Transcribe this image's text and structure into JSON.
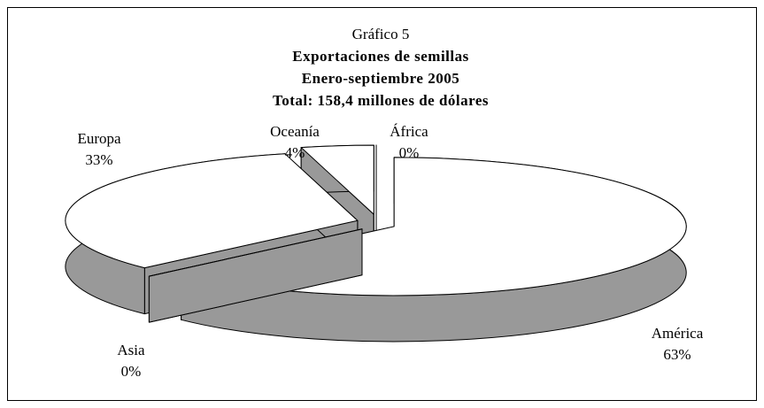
{
  "chart_data": {
    "type": "pie3d",
    "title": "Gráfico 5",
    "subtitle": [
      "Exportaciones de semillas",
      "Enero-septiembre 2005",
      "Total: 158,4 millones de dólares"
    ],
    "categories": [
      "América",
      "Asia",
      "Europa",
      "Oceanía",
      "África"
    ],
    "values": [
      63,
      0,
      33,
      4,
      0
    ],
    "value_labels": [
      "63%",
      "0%",
      "33%",
      "4%",
      "0%"
    ],
    "top_color": "#ffffff",
    "side_color": "#999999"
  }
}
